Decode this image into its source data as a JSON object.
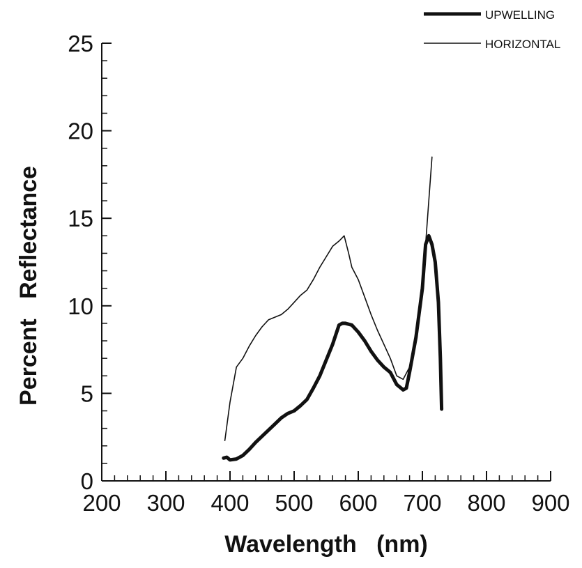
{
  "chart_data": {
    "type": "line",
    "title": "",
    "xlabel": "Wavelength   (nm)",
    "ylabel": "Percent   Reflectance",
    "xlim": [
      200,
      900
    ],
    "ylim": [
      0,
      25
    ],
    "xticks": [
      200,
      300,
      400,
      500,
      600,
      700,
      800,
      900
    ],
    "xtick_labels": [
      "200",
      "300",
      "400",
      "500",
      "600",
      "700",
      "800",
      "900"
    ],
    "yticks": [
      0,
      5,
      10,
      15,
      20,
      25
    ],
    "ytick_labels": [
      "0",
      "5",
      "10",
      "15",
      "20",
      "25"
    ],
    "x_minor_step": 20,
    "y_minor_step": 1,
    "grid": false,
    "legend_position": "top-right",
    "series": [
      {
        "name": "UPWELLING",
        "color": "#111111",
        "line": "thick",
        "x": [
          390,
          395,
          400,
          410,
          420,
          430,
          440,
          450,
          460,
          470,
          480,
          490,
          500,
          510,
          520,
          530,
          540,
          550,
          560,
          570,
          575,
          580,
          590,
          600,
          610,
          620,
          630,
          640,
          650,
          660,
          665,
          670,
          675,
          680,
          690,
          700,
          705,
          710,
          715,
          720,
          725,
          728,
          730
        ],
        "y": [
          1.3,
          1.35,
          1.2,
          1.25,
          1.45,
          1.8,
          2.2,
          2.55,
          2.9,
          3.25,
          3.6,
          3.85,
          4.0,
          4.3,
          4.65,
          5.3,
          6.0,
          6.9,
          7.8,
          8.9,
          9.0,
          9.0,
          8.9,
          8.5,
          8.0,
          7.4,
          6.9,
          6.5,
          6.2,
          5.5,
          5.35,
          5.2,
          5.3,
          6.2,
          8.2,
          11.0,
          13.5,
          14.0,
          13.5,
          12.5,
          10.2,
          7.0,
          4.1
        ]
      },
      {
        "name": "HORIZONTAL",
        "color": "#111111",
        "line": "thin",
        "x": [
          392,
          400,
          410,
          420,
          430,
          440,
          450,
          460,
          470,
          480,
          490,
          500,
          510,
          520,
          530,
          540,
          550,
          560,
          570,
          578,
          585,
          590,
          600,
          610,
          620,
          630,
          640,
          650,
          660,
          670,
          680,
          690,
          700,
          705,
          710,
          715
        ],
        "y": [
          2.3,
          4.5,
          6.5,
          7.0,
          7.7,
          8.3,
          8.8,
          9.2,
          9.35,
          9.5,
          9.8,
          10.2,
          10.6,
          10.9,
          11.5,
          12.2,
          12.8,
          13.4,
          13.7,
          14.0,
          13.0,
          12.2,
          11.5,
          10.5,
          9.5,
          8.6,
          7.8,
          7.0,
          6.0,
          5.8,
          6.5,
          8.5,
          11.5,
          13.5,
          16.0,
          18.5
        ]
      }
    ]
  }
}
